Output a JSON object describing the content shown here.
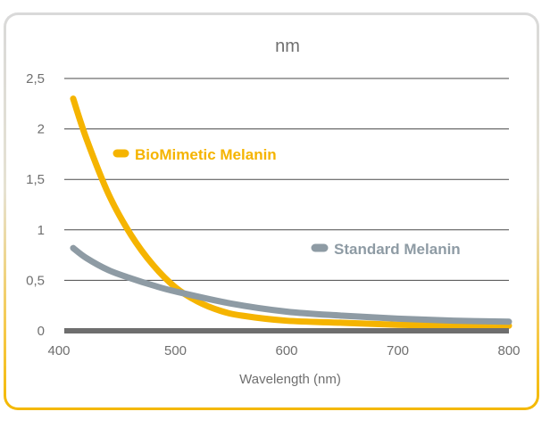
{
  "chart_data": {
    "type": "line",
    "title": "nm",
    "xlabel": "Wavelength (nm)",
    "ylabel": "",
    "xlim": [
      400,
      800
    ],
    "ylim": [
      0,
      2.5
    ],
    "x_ticks": [
      "400",
      "500",
      "600",
      "700",
      "800"
    ],
    "y_ticks": [
      "0",
      "0,5",
      "1",
      "1,5",
      "2",
      "2,5"
    ],
    "grid": "horizontal",
    "legend_placement": "inline",
    "series": [
      {
        "name": "BioMimetic Melanin",
        "color": "#f5b400",
        "points": [
          [
            408,
            2.3
          ],
          [
            420,
            1.9
          ],
          [
            440,
            1.35
          ],
          [
            460,
            0.95
          ],
          [
            480,
            0.65
          ],
          [
            500,
            0.43
          ],
          [
            520,
            0.29
          ],
          [
            540,
            0.2
          ],
          [
            560,
            0.15
          ],
          [
            600,
            0.1
          ],
          [
            650,
            0.08
          ],
          [
            700,
            0.06
          ],
          [
            750,
            0.05
          ],
          [
            800,
            0.05
          ]
        ]
      },
      {
        "name": "Standard Melanin",
        "color": "#8e9ba4",
        "points": [
          [
            408,
            0.82
          ],
          [
            420,
            0.72
          ],
          [
            440,
            0.6
          ],
          [
            460,
            0.52
          ],
          [
            480,
            0.45
          ],
          [
            500,
            0.39
          ],
          [
            550,
            0.27
          ],
          [
            600,
            0.19
          ],
          [
            650,
            0.15
          ],
          [
            700,
            0.12
          ],
          [
            750,
            0.1
          ],
          [
            800,
            0.09
          ]
        ]
      }
    ]
  }
}
